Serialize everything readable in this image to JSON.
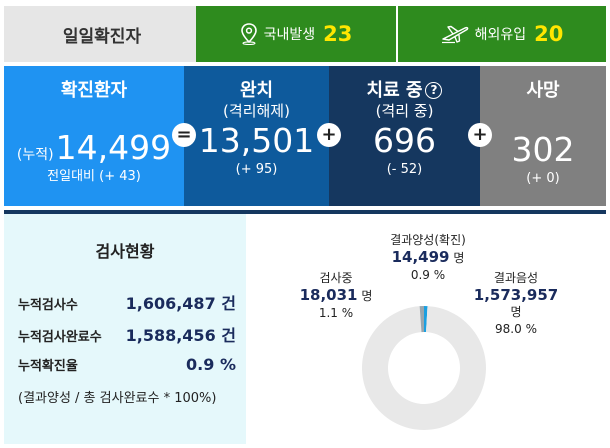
{
  "banner": {
    "daily_label": "일일확진자",
    "domestic": {
      "icon": "location-pin-icon",
      "label": "국내발생",
      "value": "23"
    },
    "overseas": {
      "icon": "airplane-icon",
      "label": "해외유입",
      "value": "20"
    }
  },
  "stats": {
    "confirmed": {
      "title": "확진환자",
      "prefix": "(누적)",
      "value": "14,499",
      "change": "전일대비 (+ 43)"
    },
    "released": {
      "title": "완치",
      "subtitle": "(격리해제)",
      "value": "13,501",
      "change": "(+ 95)"
    },
    "treating": {
      "title": "치료 중",
      "help": "?",
      "subtitle": "(격리 중)",
      "value": "696",
      "change": "(- 52)"
    },
    "deaths": {
      "title": "사망",
      "value": "302",
      "change": "(+ 0)"
    },
    "ops": {
      "eq": "=",
      "plus1": "+",
      "plus2": "+",
      "plus3": "+"
    }
  },
  "tests": {
    "title": "검사현황",
    "rows": [
      {
        "label": "누적검사수",
        "value": "1,606,487 건"
      },
      {
        "label": "누적검사완료수",
        "value": "1,588,456 건"
      },
      {
        "label": "누적확진율",
        "value": "0.9 %"
      }
    ],
    "note": "(결과양성 / 총 검사완료수 * 100%)"
  },
  "chart_data": {
    "type": "pie",
    "series": [
      {
        "name": "결과양성(확진)",
        "value": 14499,
        "unit": "명",
        "percent": "0.9 %",
        "color": "#1a9fe0"
      },
      {
        "name": "결과음성",
        "value": 1573957,
        "unit": "명",
        "percent": "98.0 %",
        "color": "#e8e8e8"
      },
      {
        "name": "검사중",
        "value": 18031,
        "unit": "명",
        "percent": "1.1 %",
        "color": "#9aa6ad"
      }
    ],
    "display": {
      "positive": {
        "label": "결과양성(확진)",
        "value": "14,499",
        "unit": "명",
        "percent": "0.9 %"
      },
      "negative": {
        "label": "결과음성",
        "value": "1,573,957",
        "unit": "명",
        "percent": "98.0 %"
      },
      "testing": {
        "label": "검사중",
        "value": "18,031",
        "unit": "명",
        "percent": "1.1 %"
      }
    }
  }
}
